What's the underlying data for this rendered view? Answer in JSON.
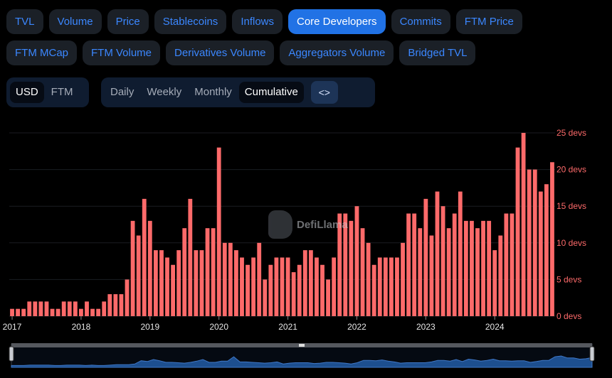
{
  "tabs_row1": [
    "TVL",
    "Volume",
    "Price",
    "Stablecoins",
    "Inflows",
    "Core Developers",
    "Commits",
    "FTM Price"
  ],
  "tabs_row2": [
    "FTM MCap",
    "FTM Volume",
    "Derivatives Volume",
    "Aggregators Volume",
    "Bridged TVL"
  ],
  "active_tab": "Core Developers",
  "currency": {
    "options": [
      "USD",
      "FTM"
    ],
    "selected": "USD"
  },
  "period": {
    "options": [
      "Daily",
      "Weekly",
      "Monthly",
      "Cumulative"
    ],
    "selected": "Cumulative"
  },
  "embed_button_glyph": "<>",
  "watermark": "DefiLlama",
  "colors": {
    "bar": "#fd6a6a",
    "active_tab": "#2172e5",
    "tab_text": "#3b87ff",
    "slider_area": "#1d4f8f"
  },
  "chart_data": {
    "type": "bar",
    "x_start": "2017-01",
    "interval": "month",
    "x_ticks": [
      "2017",
      "2018",
      "2019",
      "2020",
      "2021",
      "2022",
      "2023",
      "2024"
    ],
    "y_ticks": [
      "0 devs",
      "5 devs",
      "10 devs",
      "15 devs",
      "20 devs",
      "25 devs"
    ],
    "ylim": [
      0,
      25
    ],
    "y_axis_position": "right",
    "grid": true,
    "values": [
      1,
      1,
      1,
      2,
      2,
      2,
      2,
      1,
      1,
      2,
      2,
      2,
      1,
      2,
      1,
      1,
      2,
      3,
      3,
      3,
      5,
      13,
      11,
      16,
      13,
      9,
      9,
      8,
      7,
      9,
      12,
      16,
      9,
      9,
      12,
      12,
      23,
      10,
      10,
      9,
      8,
      7,
      8,
      10,
      5,
      7,
      8,
      8,
      8,
      6,
      7,
      9,
      9,
      8,
      7,
      5,
      8,
      14,
      14,
      13,
      15,
      12,
      10,
      7,
      8,
      8,
      8,
      8,
      10,
      14,
      14,
      12,
      16,
      11,
      17,
      15,
      12,
      14,
      17,
      13,
      13,
      12,
      13,
      13,
      9,
      11,
      14,
      14,
      23,
      25,
      20,
      20,
      17,
      18,
      21
    ]
  }
}
